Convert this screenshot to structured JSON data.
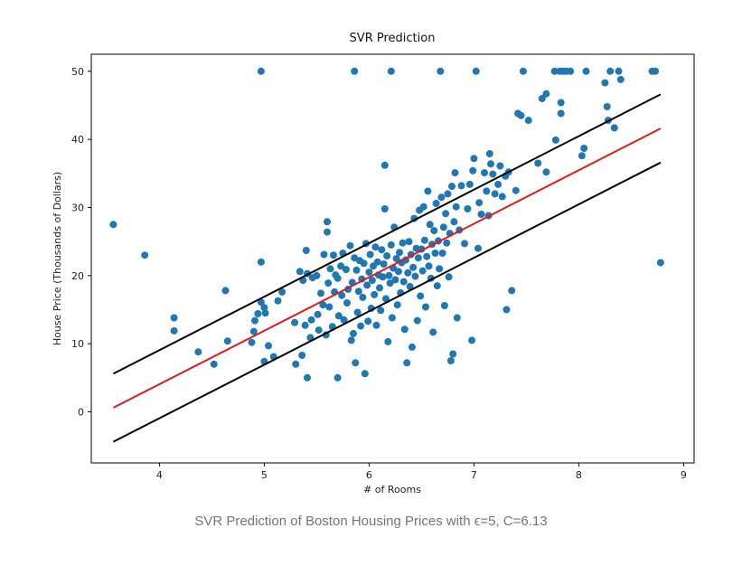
{
  "caption": "SVR Prediction of Boston Housing Prices with ϵ=5, C=6.13",
  "chart_data": {
    "type": "scatter",
    "title": "SVR Prediction",
    "xlabel": "# of Rooms",
    "ylabel": "House Price (Thousands of Dollars)",
    "xlim": [
      3.35,
      9.1
    ],
    "ylim": [
      -7.5,
      52.5
    ],
    "xticks": [
      4,
      5,
      6,
      7,
      8,
      9
    ],
    "yticks": [
      0,
      10,
      20,
      30,
      40,
      50
    ],
    "grid": false,
    "colors": {
      "points": "#1f77b4",
      "prediction": "#e31a1c",
      "margin": "#000000"
    },
    "series": [
      {
        "type": "scatter",
        "points": [
          [
            3.56,
            27.5
          ],
          [
            3.86,
            23.0
          ],
          [
            4.14,
            13.8
          ],
          [
            4.14,
            11.9
          ],
          [
            4.37,
            8.8
          ],
          [
            4.52,
            7.0
          ],
          [
            4.63,
            17.8
          ],
          [
            4.65,
            10.4
          ],
          [
            4.88,
            10.2
          ],
          [
            4.9,
            11.8
          ],
          [
            4.91,
            13.4
          ],
          [
            4.94,
            14.4
          ],
          [
            4.97,
            50.0
          ],
          [
            4.97,
            22.0
          ],
          [
            4.97,
            16.1
          ],
          [
            5.0,
            15.3
          ],
          [
            5.0,
            7.4
          ],
          [
            5.01,
            14.5
          ],
          [
            5.04,
            9.7
          ],
          [
            5.09,
            8.1
          ],
          [
            5.13,
            16.3
          ],
          [
            5.17,
            17.6
          ],
          [
            5.29,
            13.1
          ],
          [
            5.3,
            7.0
          ],
          [
            5.34,
            20.6
          ],
          [
            5.36,
            8.3
          ],
          [
            5.37,
            19.3
          ],
          [
            5.39,
            12.7
          ],
          [
            5.4,
            23.7
          ],
          [
            5.41,
            5.0
          ],
          [
            5.41,
            20.3
          ],
          [
            5.44,
            10.9
          ],
          [
            5.45,
            13.5
          ],
          [
            5.46,
            19.7
          ],
          [
            5.5,
            20.0
          ],
          [
            5.51,
            14.3
          ],
          [
            5.52,
            12.0
          ],
          [
            5.54,
            17.4
          ],
          [
            5.56,
            15.7
          ],
          [
            5.57,
            23.1
          ],
          [
            5.59,
            11.3
          ],
          [
            5.6,
            27.9
          ],
          [
            5.6,
            26.4
          ],
          [
            5.61,
            18.9
          ],
          [
            5.62,
            15.4
          ],
          [
            5.63,
            21.0
          ],
          [
            5.65,
            12.5
          ],
          [
            5.66,
            23.0
          ],
          [
            5.67,
            17.6
          ],
          [
            5.68,
            20.1
          ],
          [
            5.7,
            5.0
          ],
          [
            5.7,
            19.6
          ],
          [
            5.71,
            14.1
          ],
          [
            5.73,
            21.4
          ],
          [
            5.74,
            17.1
          ],
          [
            5.75,
            23.3
          ],
          [
            5.76,
            13.5
          ],
          [
            5.78,
            20.9
          ],
          [
            5.79,
            16.0
          ],
          [
            5.8,
            18.0
          ],
          [
            5.82,
            24.4
          ],
          [
            5.83,
            10.5
          ],
          [
            5.84,
            19.0
          ],
          [
            5.85,
            11.5
          ],
          [
            5.86,
            50.0
          ],
          [
            5.86,
            22.6
          ],
          [
            5.87,
            7.2
          ],
          [
            5.88,
            20.8
          ],
          [
            5.89,
            14.6
          ],
          [
            5.9,
            17.7
          ],
          [
            5.91,
            22.2
          ],
          [
            5.92,
            12.6
          ],
          [
            5.93,
            19.5
          ],
          [
            5.94,
            16.8
          ],
          [
            5.95,
            21.8
          ],
          [
            5.96,
            5.6
          ],
          [
            5.97,
            24.7
          ],
          [
            5.98,
            18.6
          ],
          [
            5.99,
            13.3
          ],
          [
            6.0,
            20.5
          ],
          [
            6.01,
            23.1
          ],
          [
            6.02,
            15.2
          ],
          [
            6.03,
            19.3
          ],
          [
            6.04,
            21.4
          ],
          [
            6.05,
            17.2
          ],
          [
            6.06,
            24.2
          ],
          [
            6.07,
            12.7
          ],
          [
            6.08,
            22.0
          ],
          [
            6.09,
            20.1
          ],
          [
            6.1,
            18.2
          ],
          [
            6.11,
            14.9
          ],
          [
            6.12,
            23.8
          ],
          [
            6.13,
            19.8
          ],
          [
            6.14,
            21.7
          ],
          [
            6.15,
            36.2
          ],
          [
            6.15,
            29.8
          ],
          [
            6.16,
            16.6
          ],
          [
            6.17,
            22.9
          ],
          [
            6.18,
            10.3
          ],
          [
            6.19,
            20.0
          ],
          [
            6.2,
            18.9
          ],
          [
            6.21,
            50.0
          ],
          [
            6.21,
            24.5
          ],
          [
            6.22,
            13.8
          ],
          [
            6.23,
            21.1
          ],
          [
            6.24,
            27.1
          ],
          [
            6.25,
            19.4
          ],
          [
            6.26,
            22.5
          ],
          [
            6.27,
            15.7
          ],
          [
            6.28,
            20.6
          ],
          [
            6.29,
            23.4
          ],
          [
            6.3,
            17.5
          ],
          [
            6.31,
            21.9
          ],
          [
            6.32,
            24.8
          ],
          [
            6.33,
            19.1
          ],
          [
            6.34,
            12.1
          ],
          [
            6.35,
            22.3
          ],
          [
            6.36,
            7.2
          ],
          [
            6.37,
            20.4
          ],
          [
            6.38,
            25.0
          ],
          [
            6.39,
            18.4
          ],
          [
            6.4,
            23.1
          ],
          [
            6.41,
            9.5
          ],
          [
            6.42,
            21.2
          ],
          [
            6.43,
            28.4
          ],
          [
            6.44,
            19.9
          ],
          [
            6.45,
            24.0
          ],
          [
            6.46,
            13.4
          ],
          [
            6.47,
            22.6
          ],
          [
            6.48,
            29.6
          ],
          [
            6.49,
            17.0
          ],
          [
            6.5,
            23.9
          ],
          [
            6.51,
            20.7
          ],
          [
            6.52,
            30.1
          ],
          [
            6.53,
            25.2
          ],
          [
            6.54,
            15.4
          ],
          [
            6.55,
            22.8
          ],
          [
            6.56,
            32.4
          ],
          [
            6.57,
            21.4
          ],
          [
            6.58,
            27.5
          ],
          [
            6.59,
            19.6
          ],
          [
            6.6,
            24.6
          ],
          [
            6.61,
            11.7
          ],
          [
            6.62,
            26.6
          ],
          [
            6.63,
            23.3
          ],
          [
            6.64,
            30.6
          ],
          [
            6.65,
            18.5
          ],
          [
            6.66,
            25.1
          ],
          [
            6.67,
            21.0
          ],
          [
            6.68,
            50.0
          ],
          [
            6.69,
            31.5
          ],
          [
            6.7,
            23.3
          ],
          [
            6.71,
            27.1
          ],
          [
            6.72,
            15.6
          ],
          [
            6.73,
            29.1
          ],
          [
            6.74,
            24.8
          ],
          [
            6.75,
            32.0
          ],
          [
            6.76,
            19.8
          ],
          [
            6.77,
            26.2
          ],
          [
            6.78,
            7.5
          ],
          [
            6.79,
            33.1
          ],
          [
            6.8,
            8.5
          ],
          [
            6.81,
            27.9
          ],
          [
            6.82,
            35.1
          ],
          [
            6.83,
            30.1
          ],
          [
            6.84,
            13.8
          ],
          [
            6.86,
            26.7
          ],
          [
            6.88,
            33.2
          ],
          [
            6.91,
            24.7
          ],
          [
            6.94,
            29.8
          ],
          [
            6.96,
            33.4
          ],
          [
            6.98,
            10.5
          ],
          [
            6.99,
            35.4
          ],
          [
            7.0,
            37.2
          ],
          [
            7.02,
            50.0
          ],
          [
            7.04,
            24.0
          ],
          [
            7.05,
            30.7
          ],
          [
            7.07,
            29.0
          ],
          [
            7.1,
            35.1
          ],
          [
            7.12,
            32.4
          ],
          [
            7.14,
            28.8
          ],
          [
            7.15,
            37.9
          ],
          [
            7.16,
            36.4
          ],
          [
            7.18,
            34.9
          ],
          [
            7.2,
            32.0
          ],
          [
            7.23,
            33.4
          ],
          [
            7.25,
            36.1
          ],
          [
            7.27,
            31.6
          ],
          [
            7.3,
            34.6
          ],
          [
            7.31,
            15.0
          ],
          [
            7.33,
            35.2
          ],
          [
            7.36,
            17.8
          ],
          [
            7.4,
            32.5
          ],
          [
            7.42,
            43.8
          ],
          [
            7.45,
            43.5
          ],
          [
            7.47,
            50.0
          ],
          [
            7.52,
            42.8
          ],
          [
            7.61,
            36.5
          ],
          [
            7.65,
            46.0
          ],
          [
            7.69,
            46.7
          ],
          [
            7.69,
            35.2
          ],
          [
            7.77,
            50.0
          ],
          [
            7.78,
            39.9
          ],
          [
            7.82,
            50.0
          ],
          [
            7.83,
            45.4
          ],
          [
            7.83,
            43.8
          ],
          [
            7.85,
            50.0
          ],
          [
            7.88,
            50.0
          ],
          [
            7.92,
            50.0
          ],
          [
            8.03,
            37.6
          ],
          [
            8.05,
            38.7
          ],
          [
            8.07,
            50.0
          ],
          [
            8.25,
            48.3
          ],
          [
            8.27,
            44.8
          ],
          [
            8.28,
            42.8
          ],
          [
            8.3,
            50.0
          ],
          [
            8.34,
            41.7
          ],
          [
            8.38,
            50.0
          ],
          [
            8.4,
            48.8
          ],
          [
            8.7,
            50.0
          ],
          [
            8.73,
            50.0
          ],
          [
            8.78,
            21.9
          ]
        ]
      },
      {
        "type": "line",
        "role": "prediction",
        "x": [
          3.56,
          8.78
        ],
        "y": [
          0.6,
          41.6
        ]
      },
      {
        "type": "line",
        "role": "upper-margin",
        "x": [
          3.56,
          8.78
        ],
        "y": [
          5.6,
          46.6
        ]
      },
      {
        "type": "line",
        "role": "lower-margin",
        "x": [
          3.56,
          8.78
        ],
        "y": [
          -4.4,
          36.6
        ]
      }
    ]
  }
}
